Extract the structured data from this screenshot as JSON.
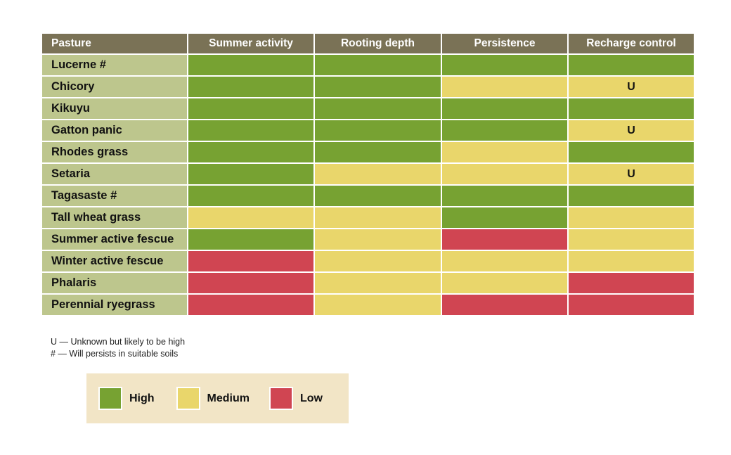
{
  "table": {
    "headers": [
      "Pasture",
      "Summer activity",
      "Rooting depth",
      "Persistence",
      "Recharge control"
    ],
    "rows": [
      {
        "name": "Lucerne #",
        "cells": [
          {
            "level": "high",
            "text": ""
          },
          {
            "level": "high",
            "text": ""
          },
          {
            "level": "high",
            "text": ""
          },
          {
            "level": "high",
            "text": ""
          }
        ]
      },
      {
        "name": "Chicory",
        "cells": [
          {
            "level": "high",
            "text": ""
          },
          {
            "level": "high",
            "text": ""
          },
          {
            "level": "medium",
            "text": ""
          },
          {
            "level": "medium",
            "text": "U"
          }
        ]
      },
      {
        "name": "Kikuyu",
        "cells": [
          {
            "level": "high",
            "text": ""
          },
          {
            "level": "high",
            "text": ""
          },
          {
            "level": "high",
            "text": ""
          },
          {
            "level": "high",
            "text": ""
          }
        ]
      },
      {
        "name": "Gatton panic",
        "cells": [
          {
            "level": "high",
            "text": ""
          },
          {
            "level": "high",
            "text": ""
          },
          {
            "level": "high",
            "text": ""
          },
          {
            "level": "medium",
            "text": "U"
          }
        ]
      },
      {
        "name": "Rhodes grass",
        "cells": [
          {
            "level": "high",
            "text": ""
          },
          {
            "level": "high",
            "text": ""
          },
          {
            "level": "medium",
            "text": ""
          },
          {
            "level": "high",
            "text": ""
          }
        ]
      },
      {
        "name": "Setaria",
        "cells": [
          {
            "level": "high",
            "text": ""
          },
          {
            "level": "medium",
            "text": ""
          },
          {
            "level": "medium",
            "text": ""
          },
          {
            "level": "medium",
            "text": "U"
          }
        ]
      },
      {
        "name": "Tagasaste #",
        "cells": [
          {
            "level": "high",
            "text": ""
          },
          {
            "level": "high",
            "text": ""
          },
          {
            "level": "high",
            "text": ""
          },
          {
            "level": "high",
            "text": ""
          }
        ]
      },
      {
        "name": "Tall wheat grass",
        "cells": [
          {
            "level": "medium",
            "text": ""
          },
          {
            "level": "medium",
            "text": ""
          },
          {
            "level": "high",
            "text": ""
          },
          {
            "level": "medium",
            "text": ""
          }
        ]
      },
      {
        "name": "Summer active fescue",
        "cells": [
          {
            "level": "high",
            "text": ""
          },
          {
            "level": "medium",
            "text": ""
          },
          {
            "level": "low",
            "text": ""
          },
          {
            "level": "medium",
            "text": ""
          }
        ]
      },
      {
        "name": "Winter active fescue",
        "cells": [
          {
            "level": "low",
            "text": ""
          },
          {
            "level": "medium",
            "text": ""
          },
          {
            "level": "medium",
            "text": ""
          },
          {
            "level": "medium",
            "text": ""
          }
        ]
      },
      {
        "name": "Phalaris",
        "cells": [
          {
            "level": "low",
            "text": ""
          },
          {
            "level": "medium",
            "text": ""
          },
          {
            "level": "medium",
            "text": ""
          },
          {
            "level": "low",
            "text": ""
          }
        ]
      },
      {
        "name": "Perennial ryegrass",
        "cells": [
          {
            "level": "low",
            "text": ""
          },
          {
            "level": "medium",
            "text": ""
          },
          {
            "level": "low",
            "text": ""
          },
          {
            "level": "low",
            "text": ""
          }
        ]
      }
    ]
  },
  "notes": {
    "unknown": "U — Unknown but likely to be high",
    "persists": "# — Will persists in suitable soils"
  },
  "legend": {
    "items": [
      {
        "level": "high",
        "label": "High"
      },
      {
        "level": "medium",
        "label": "Medium"
      },
      {
        "level": "low",
        "label": "Low"
      }
    ]
  },
  "colors": {
    "header_bg": "#7a7256",
    "name_bg": "#bdc68d",
    "high": "#77a232",
    "medium": "#e9d66b",
    "low": "#d04552",
    "legend_bg": "#f2e5c6"
  }
}
